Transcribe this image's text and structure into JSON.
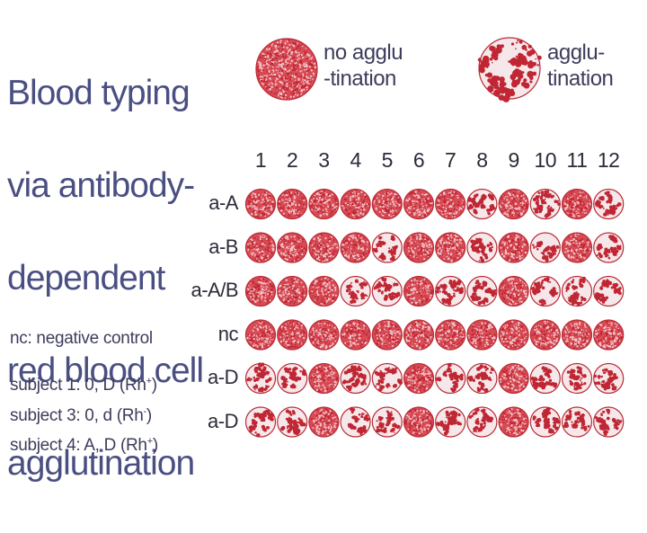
{
  "title_lines": [
    "Blood typing",
    "via antibody-",
    "dependent",
    "red blood cell",
    "agglutination"
  ],
  "nc_note": "nc: negative control",
  "subjects": [
    {
      "prefix": "subject 1:  0, D (Rh",
      "sup": "+",
      "suffix": ")"
    },
    {
      "prefix": "subject 3:  0, d  (Rh",
      "sup": "-",
      "suffix": ")"
    },
    {
      "prefix": "subject 4:  A, D (Rh",
      "sup": "+",
      "suffix": ")"
    }
  ],
  "legend": {
    "no_agglutination": {
      "line1": "no agglu",
      "line2": "-tination"
    },
    "agglutination": {
      "line1": "agglu-",
      "line2": "tination"
    }
  },
  "columns": [
    "1",
    "2",
    "3",
    "4",
    "5",
    "6",
    "7",
    "8",
    "9",
    "10",
    "11",
    "12"
  ],
  "rows": [
    {
      "label": "a-A",
      "wells": [
        0,
        0,
        0,
        0,
        0,
        0,
        0,
        1,
        0,
        1,
        0,
        1
      ]
    },
    {
      "label": "a-B",
      "wells": [
        0,
        0,
        0,
        0,
        1,
        0,
        0,
        1,
        0,
        1,
        0,
        1
      ]
    },
    {
      "label": "a-A/B",
      "wells": [
        0,
        0,
        0,
        1,
        1,
        0,
        1,
        1,
        0,
        1,
        1,
        1
      ]
    },
    {
      "label": "nc",
      "wells": [
        0,
        0,
        0,
        0,
        0,
        0,
        0,
        0,
        0,
        0,
        0,
        0
      ]
    },
    {
      "label": "a-D",
      "wells": [
        1,
        1,
        0,
        1,
        1,
        0,
        1,
        1,
        0,
        1,
        1,
        1
      ]
    },
    {
      "label": "a-D",
      "wells": [
        1,
        1,
        0,
        1,
        1,
        0,
        1,
        1,
        0,
        1,
        1,
        1
      ]
    }
  ],
  "colors": {
    "title": "#4a4f82",
    "well_fill": "#d84b55",
    "well_rim": "#b82b35",
    "cell_dot": "#c02633",
    "agglutinated_bg": "#f6e8ea"
  }
}
